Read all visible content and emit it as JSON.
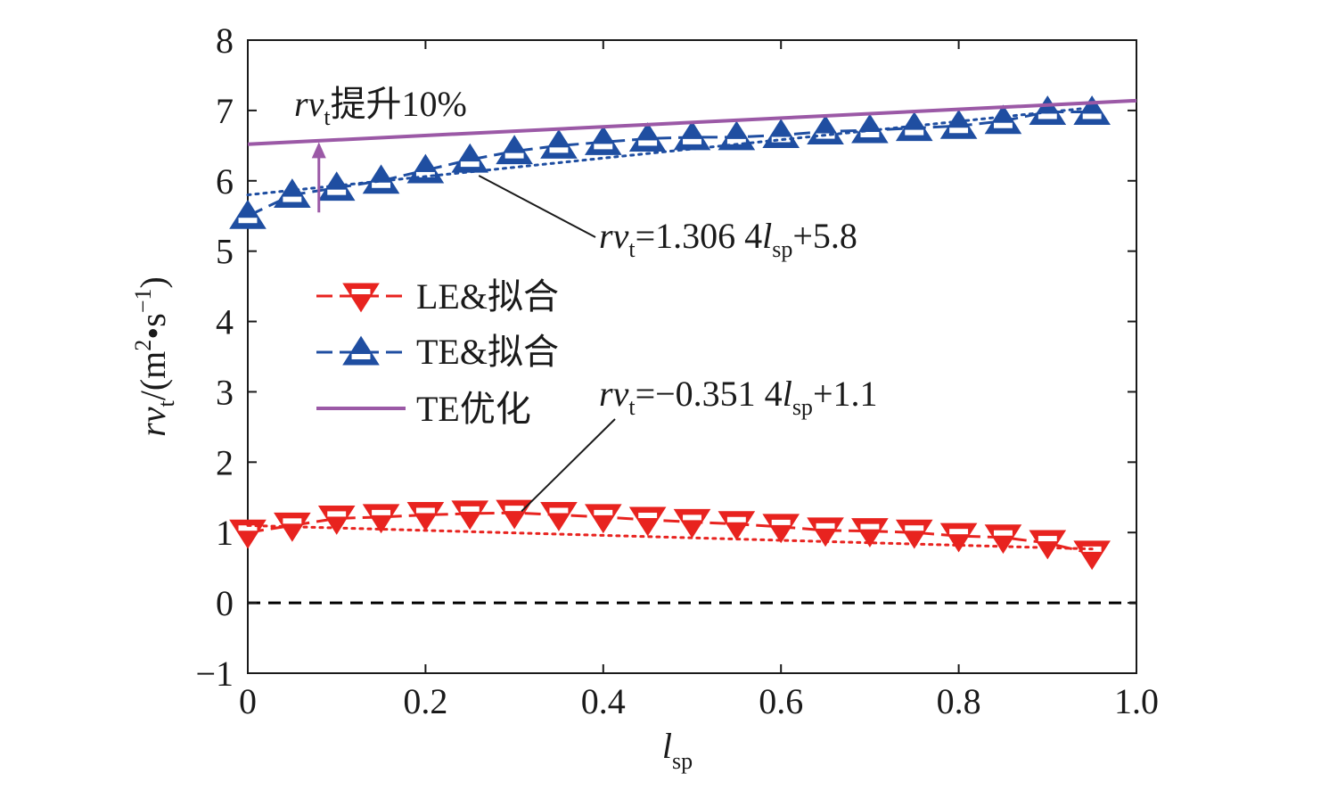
{
  "colors": {
    "le": "#e8231f",
    "te": "#1f4ea1",
    "te_opt": "#9b59a6",
    "axis": "#1a1a1a",
    "zero_line": "#000000"
  },
  "chart_data": {
    "type": "scatter",
    "x_axis": {
      "label_main": "l",
      "label_sub": "sp",
      "range": [
        0,
        1.0
      ],
      "ticks": [
        0,
        0.2,
        0.4,
        0.6,
        0.8,
        1.0
      ],
      "tick_labels": [
        "0",
        "0.2",
        "0.4",
        "0.6",
        "0.8",
        "1.0"
      ]
    },
    "y_axis": {
      "label_main": "rv",
      "label_sub": "t",
      "label_unit_open": "/(m",
      "label_unit_sup2": "2",
      "label_unit_mid": "•s",
      "label_unit_sup": "−1",
      "label_unit_close": ")",
      "range": [
        -1,
        8
      ],
      "ticks": [
        -1,
        0,
        1,
        2,
        3,
        4,
        5,
        6,
        7,
        8
      ],
      "tick_labels": [
        "−1",
        "0",
        "1",
        "2",
        "3",
        "4",
        "5",
        "6",
        "7",
        "8"
      ]
    },
    "grid": false,
    "zero_line": true,
    "legend": {
      "position": "center-left",
      "entries": [
        {
          "key": "le",
          "label": "LE&拟合"
        },
        {
          "key": "te",
          "label": "TE&拟合"
        },
        {
          "key": "te_opt",
          "label": "TE优化"
        }
      ]
    },
    "series": [
      {
        "name": "LE",
        "marker": "down-triangle",
        "x": [
          0,
          0.05,
          0.1,
          0.15,
          0.2,
          0.25,
          0.3,
          0.35,
          0.4,
          0.45,
          0.5,
          0.55,
          0.6,
          0.65,
          0.7,
          0.75,
          0.8,
          0.85,
          0.9,
          0.95
        ],
        "y": [
          1.0,
          1.1,
          1.2,
          1.22,
          1.25,
          1.27,
          1.28,
          1.25,
          1.22,
          1.18,
          1.15,
          1.12,
          1.08,
          1.03,
          1.02,
          1.0,
          0.95,
          0.93,
          0.85,
          0.7
        ]
      },
      {
        "name": "TE",
        "marker": "up-triangle",
        "x": [
          0,
          0.05,
          0.1,
          0.15,
          0.2,
          0.25,
          0.3,
          0.35,
          0.4,
          0.45,
          0.5,
          0.55,
          0.6,
          0.65,
          0.7,
          0.75,
          0.8,
          0.85,
          0.9,
          0.95
        ],
        "y": [
          5.5,
          5.8,
          5.9,
          6.0,
          6.15,
          6.3,
          6.42,
          6.5,
          6.55,
          6.6,
          6.62,
          6.62,
          6.65,
          6.7,
          6.72,
          6.75,
          6.78,
          6.85,
          6.98,
          6.98
        ]
      }
    ],
    "fit_lines": [
      {
        "series": "LE",
        "slope": -0.3514,
        "intercept": 1.1,
        "x_range": [
          0,
          0.95
        ],
        "shown_min": 0.8,
        "style": "dotted"
      },
      {
        "series": "TE",
        "slope": 1.3064,
        "intercept": 5.8,
        "x_range": [
          0,
          0.95
        ],
        "shown_min": 5.72,
        "style": "dotted"
      }
    ],
    "optimized_line": {
      "name": "TE",
      "slope": 0.62,
      "intercept": 6.52,
      "x_range": [
        0,
        1.0
      ]
    },
    "annotations": [
      {
        "id": "te_eq",
        "pre": "rv",
        "sub": "t",
        "mid": "=1.306 4",
        "l": "l",
        "lsub": "sp",
        "post": "+5.8",
        "points_to": [
          0.25,
          6.2
        ]
      },
      {
        "id": "le_eq",
        "pre": "rv",
        "sub": "t",
        "mid": "=−0.351 4",
        "l": "l",
        "lsub": "sp",
        "post": "+1.1",
        "points_to": [
          0.3,
          1.2
        ]
      },
      {
        "id": "improve",
        "pre": "rv",
        "sub": "t",
        "post": "提升10%",
        "arrow_x": 0.08,
        "arrow_from": 5.55,
        "arrow_to": 6.55
      }
    ]
  }
}
